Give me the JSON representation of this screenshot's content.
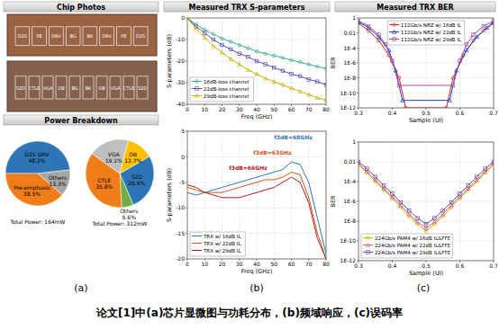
{
  "headers": [
    "Chip Photos",
    "Power Breakdown",
    "Measured TRX S-parameters",
    "Measured TRX BER"
  ],
  "chip_photo": {
    "top_blocks": [
      "D2S",
      "PE",
      "DRV",
      "BG",
      "BK",
      "DRV",
      "PE",
      "D2S"
    ],
    "bottom_blocks": [
      "S2D",
      "CTLE",
      "VGA",
      "OB",
      "BG",
      "BK",
      "OB",
      "VGA",
      "CTLE",
      "S2D"
    ]
  },
  "panel_labels": [
    "(a)",
    "(b)",
    "(c)"
  ],
  "caption": "论文[1]中(a)芯片显微图与功耗分布，(b)频域响应，(c)误码率",
  "chart_data": [
    {
      "type": "pie",
      "subtitle": "Total Power: 164mW",
      "categories": [
        "D2S DRV",
        "Others",
        "Pre-emphasis"
      ],
      "values": [
        48.2,
        13.3,
        38.5
      ],
      "value_labels": [
        "48.2%",
        "13.3%",
        "38.5%"
      ],
      "colors": [
        "#2e75b6",
        "#a6a6a6",
        "#f07d1a"
      ],
      "data_labels": true
    },
    {
      "type": "pie",
      "subtitle": "Total Power: 312mW",
      "categories": [
        "S2D",
        "Others",
        "CTLE",
        "VGA",
        "OB"
      ],
      "values": [
        26.9,
        5.6,
        35.8,
        19.1,
        12.7
      ],
      "value_labels": [
        "26.9%",
        "5.6%",
        "35.8%",
        "19.1%",
        "12.7%"
      ],
      "colors": [
        "#2e75b6",
        "#70ad47",
        "#f07d1a",
        "#bfbfbf",
        "#ffc000"
      ],
      "data_labels": true
    },
    {
      "type": "line",
      "xlabel": "Freq (GHz)",
      "ylabel": "S-parameters (dB)",
      "x": [
        0,
        5,
        10,
        15,
        20,
        25,
        30,
        35,
        40,
        45,
        50,
        55,
        60,
        65,
        70,
        75,
        80
      ],
      "xlim": [
        0,
        80
      ],
      "xticks": [
        0,
        10,
        20,
        30,
        40,
        50,
        60,
        70,
        80
      ],
      "ylim": [
        -40,
        0
      ],
      "yticks": [
        0,
        -10,
        -20,
        -30,
        -40
      ],
      "grid": true,
      "legend": "lower left",
      "series": [
        {
          "name": "16dB-loss channel",
          "color": "#3aa8a0",
          "marker": "circle",
          "values": [
            0,
            -3,
            -5.5,
            -7.5,
            -9.5,
            -11,
            -12.5,
            -14,
            -15.5,
            -16.5,
            -17.5,
            -18.5,
            -19.5,
            -20.5,
            -21.5,
            -22.5,
            -23.5
          ]
        },
        {
          "name": "22dB-loss channel",
          "color": "#5a4fb0",
          "marker": "square",
          "values": [
            0,
            -4,
            -7,
            -10,
            -12.5,
            -14.5,
            -16.5,
            -18,
            -20,
            -21.5,
            -23,
            -24.5,
            -26,
            -27,
            -28.5,
            -29.5,
            -31
          ]
        },
        {
          "name": "29dB-loss channel",
          "color": "#c8b000",
          "marker": "triangle",
          "values": [
            0,
            -5,
            -9,
            -13,
            -16,
            -19,
            -21.5,
            -24,
            -26,
            -28,
            -29.5,
            -31,
            -32.5,
            -34,
            -35.5,
            -37,
            -38
          ]
        }
      ]
    },
    {
      "type": "line",
      "xlabel": "Freq (GHz)",
      "ylabel": "S-parameters (dB)",
      "x": [
        0,
        5,
        10,
        15,
        20,
        25,
        30,
        35,
        40,
        45,
        50,
        55,
        60,
        65,
        70,
        75,
        80
      ],
      "xlim": [
        0,
        80
      ],
      "xticks": [
        0,
        10,
        20,
        30,
        40,
        50,
        60,
        70,
        80
      ],
      "ylim": [
        -20,
        5
      ],
      "yticks": [
        5,
        0,
        -5,
        -10,
        -15,
        -20
      ],
      "grid": true,
      "legend": "lower left",
      "annotations": [
        {
          "text": "f3dB=68GHz",
          "x": 50,
          "y": 3.5,
          "color": "#2e75b6"
        },
        {
          "text": "f3dB=63GHz",
          "x": 38,
          "y": 0.5,
          "color": "#d9541e"
        },
        {
          "text": "f3dB=66GHz",
          "x": 24,
          "y": -2.5,
          "color": "#b02020"
        }
      ],
      "series": [
        {
          "name": "TRX w/ 16dB IL",
          "color": "#2e75b6",
          "values": [
            -7,
            -7.5,
            -7,
            -6.5,
            -6,
            -5.5,
            -5,
            -4.5,
            -4,
            -3.5,
            -3,
            -2.5,
            -1,
            -1.5,
            -5,
            -12,
            -19
          ]
        },
        {
          "name": "TRX w/ 22dB IL",
          "color": "#d9541e",
          "values": [
            -6,
            -6.5,
            -7,
            -7,
            -7,
            -6.5,
            -6,
            -5.5,
            -5,
            -4.5,
            -4.5,
            -4,
            -3,
            -3.5,
            -8,
            -15,
            -20
          ]
        },
        {
          "name": "TRX w/ 29dB IL",
          "color": "#b02020",
          "values": [
            -5.5,
            -6,
            -7,
            -7.5,
            -8,
            -8,
            -8,
            -7.5,
            -7,
            -6.5,
            -6,
            -5,
            -4,
            -5,
            -9,
            -16,
            -20
          ]
        }
      ]
    },
    {
      "type": "line",
      "log": "y",
      "xlabel": "Sample (UI)",
      "ylabel": "BER",
      "xlim": [
        0.3,
        0.7
      ],
      "xticks": [
        0.3,
        0.4,
        0.5,
        0.6,
        0.7
      ],
      "ylim": [
        1e-12,
        1
      ],
      "yticks": [
        1,
        0.01,
        {
          "value": 0.0001,
          "label": "1E-4"
        },
        {
          "value": 1e-06,
          "label": "1E-6"
        },
        {
          "value": 1e-08,
          "label": "1E-8"
        },
        {
          "value": 1e-10,
          "label": "1E-10"
        },
        {
          "value": 1e-12,
          "label": "1E-12"
        }
      ],
      "grid": true,
      "legend": "upper center",
      "series": [
        {
          "name": "112Gb/s NRZ w/ 16dB IL",
          "color": "#d62728",
          "marker": "circle",
          "x": [
            0.3,
            0.33,
            0.36,
            0.39,
            0.42,
            0.44,
            0.56,
            0.58,
            0.61,
            0.64,
            0.67,
            0.7
          ],
          "values": [
            0.2,
            0.02,
            0.001,
            1e-05,
            1e-08,
            1e-12,
            1e-12,
            1e-08,
            1e-05,
            0.001,
            0.02,
            0.2
          ]
        },
        {
          "name": "112Gb/s NRZ w/ 22dB IL",
          "color": "#1f3fbf",
          "marker": "triangle",
          "x": [
            0.3,
            0.33,
            0.36,
            0.39,
            0.41,
            0.43,
            0.57,
            0.59,
            0.62,
            0.65,
            0.68,
            0.7
          ],
          "values": [
            0.3,
            0.05,
            0.003,
            5e-05,
            1e-07,
            1e-11,
            1e-11,
            1e-07,
            5e-05,
            0.003,
            0.05,
            0.3
          ]
        },
        {
          "name": "112Gb/s NRZ w/ 29dB IL",
          "color": "#9b4fa6",
          "marker": "square",
          "x": [
            0.3,
            0.33,
            0.36,
            0.38,
            0.4,
            0.42,
            0.58,
            0.6,
            0.62,
            0.64,
            0.67,
            0.7
          ],
          "values": [
            0.4,
            0.08,
            0.006,
            0.0003,
            2e-06,
            1e-09,
            1e-09,
            2e-06,
            0.0003,
            0.006,
            0.08,
            0.4
          ]
        }
      ]
    },
    {
      "type": "line",
      "log": "y",
      "xlabel": "Sample (UI)",
      "ylabel": "BER",
      "xlim": [
        0.3,
        0.7
      ],
      "xticks": [
        0.3,
        0.4,
        0.5,
        0.6,
        0.7
      ],
      "ylim": [
        1e-12,
        1
      ],
      "yticks": [
        1,
        0.01,
        {
          "value": 0.0001,
          "label": "1E-4"
        },
        {
          "value": 1e-06,
          "label": "1E-6"
        },
        {
          "value": 1e-08,
          "label": "1E-8"
        },
        {
          "value": 1e-10,
          "label": "1E-10"
        },
        {
          "value": 1e-12,
          "label": "1E-12"
        }
      ],
      "grid": true,
      "legend": "lower left",
      "series": [
        {
          "name": "224Gb/s PAM4 w/ 16dB IL&FFE",
          "color": "#d4b000",
          "marker": "circle",
          "x": [
            0.3,
            0.325,
            0.35,
            0.375,
            0.4,
            0.425,
            0.45,
            0.475,
            0.5,
            0.525,
            0.55,
            0.575,
            0.6,
            0.625,
            0.65,
            0.675,
            0.7
          ],
          "values": [
            0.005,
            0.0008,
            0.0001,
            1.5e-05,
            2e-06,
            2.5e-07,
            3e-08,
            5e-09,
            1e-09,
            5e-09,
            3e-08,
            2.5e-07,
            2e-06,
            1.5e-05,
            0.0001,
            0.0008,
            0.005
          ]
        },
        {
          "name": "224Gb/s PAM4 w/ 22dB IL&FFE",
          "color": "#e0607e",
          "marker": "triangle",
          "x": [
            0.3,
            0.325,
            0.35,
            0.375,
            0.4,
            0.425,
            0.45,
            0.475,
            0.5,
            0.525,
            0.55,
            0.575,
            0.6,
            0.625,
            0.65,
            0.675,
            0.7
          ],
          "values": [
            0.007,
            0.001,
            0.00015,
            2e-05,
            3e-06,
            4e-07,
            5e-08,
            8e-09,
            2e-09,
            8e-09,
            5e-08,
            4e-07,
            3e-06,
            2e-05,
            0.00015,
            0.001,
            0.007
          ]
        },
        {
          "name": "224Gb/s PAM4 w/ 29dB IL&FFE",
          "color": "#6a4aa8",
          "marker": "square",
          "x": [
            0.3,
            0.325,
            0.35,
            0.375,
            0.4,
            0.425,
            0.45,
            0.475,
            0.5,
            0.525,
            0.55,
            0.575,
            0.6,
            0.625,
            0.65,
            0.675,
            0.7
          ],
          "values": [
            0.01,
            0.002,
            0.0003,
            4e-05,
            6e-06,
            8e-07,
            1.2e-07,
            2e-08,
            5e-09,
            2e-08,
            1.2e-07,
            8e-07,
            6e-06,
            4e-05,
            0.0003,
            0.002,
            0.01
          ]
        }
      ]
    }
  ]
}
